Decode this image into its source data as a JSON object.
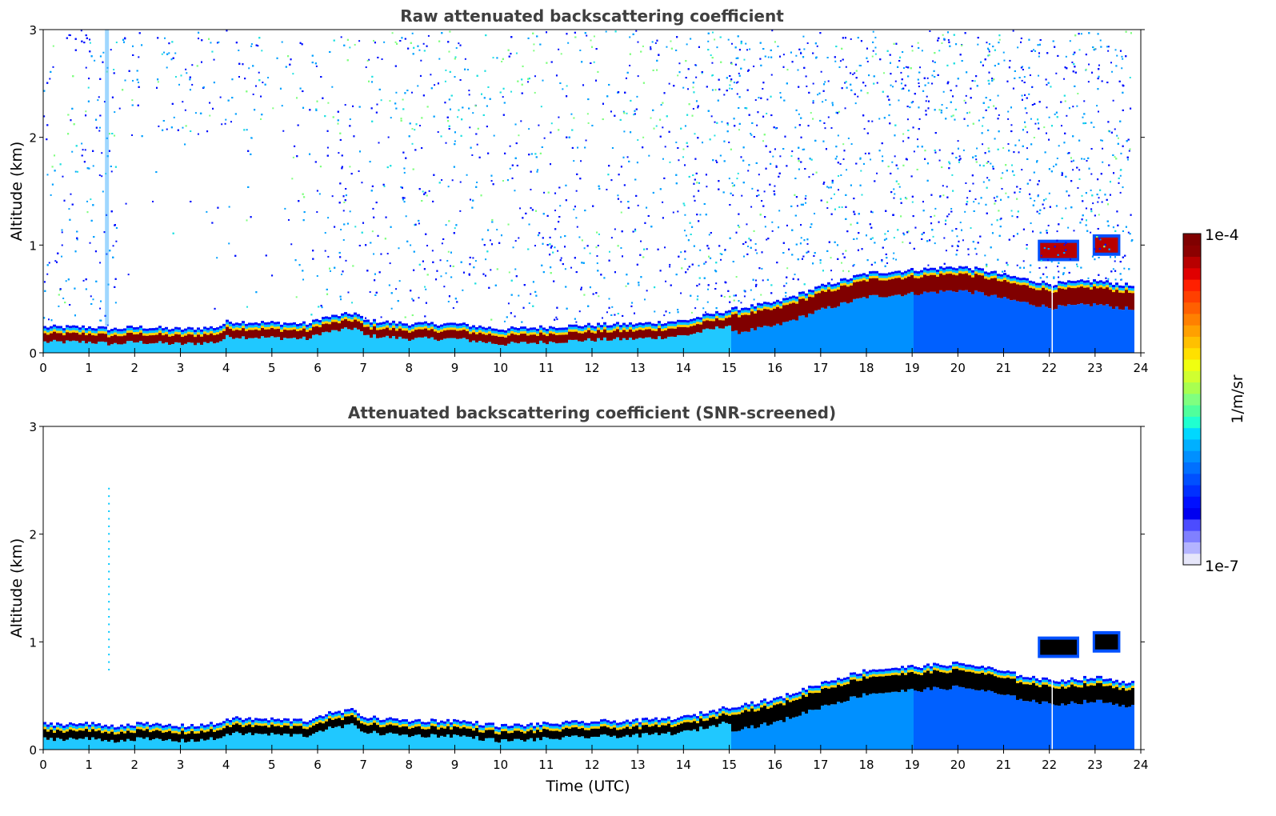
{
  "chart_data": [
    {
      "type": "heatmap",
      "title": "Raw attenuated backscattering coefficient",
      "xlabel": "",
      "ylabel": "Altitude (km)",
      "xlim": [
        0,
        24
      ],
      "ylim": [
        0,
        3
      ],
      "xticks": [
        "0",
        "1",
        "2",
        "3",
        "4",
        "5",
        "6",
        "7",
        "8",
        "9",
        "10",
        "11",
        "12",
        "13",
        "14",
        "15",
        "16",
        "17",
        "18",
        "19",
        "20",
        "21",
        "22",
        "23",
        "24"
      ],
      "yticks": [
        "0",
        "1",
        "2",
        "3"
      ],
      "data_end_time": 23.8,
      "boundary_layer_top_km": [
        [
          0,
          0.22
        ],
        [
          1,
          0.22
        ],
        [
          1.5,
          0.2
        ],
        [
          2,
          0.22
        ],
        [
          3,
          0.2
        ],
        [
          3.8,
          0.22
        ],
        [
          4,
          0.27
        ],
        [
          5,
          0.26
        ],
        [
          5.8,
          0.25
        ],
        [
          6,
          0.3
        ],
        [
          6.8,
          0.35
        ],
        [
          7,
          0.28
        ],
        [
          8,
          0.25
        ],
        [
          9,
          0.25
        ],
        [
          10,
          0.2
        ],
        [
          11,
          0.22
        ],
        [
          12,
          0.24
        ],
        [
          13,
          0.25
        ],
        [
          14,
          0.28
        ],
        [
          15,
          0.38
        ],
        [
          16,
          0.45
        ],
        [
          17,
          0.6
        ],
        [
          18,
          0.72
        ],
        [
          19,
          0.75
        ],
        [
          20,
          0.78
        ],
        [
          20.5,
          0.75
        ],
        [
          21,
          0.7
        ],
        [
          22,
          0.62
        ],
        [
          23,
          0.65
        ],
        [
          23.8,
          0.6
        ]
      ],
      "cloud_features": [
        {
          "time_start": 21.8,
          "time_end": 22.6,
          "altitude_km": 0.95
        },
        {
          "time_start": 23.0,
          "time_end": 23.5,
          "altitude_km": 1.0
        }
      ],
      "colorscale": "jet-log",
      "noise_above_layer": true
    },
    {
      "type": "heatmap",
      "title": "Attenuated backscattering coefficient (SNR-screened)",
      "xlabel": "Time (UTC)",
      "ylabel": "Altitude (km)",
      "xlim": [
        0,
        24
      ],
      "ylim": [
        0,
        3
      ],
      "xticks": [
        "0",
        "1",
        "2",
        "3",
        "4",
        "5",
        "6",
        "7",
        "8",
        "9",
        "10",
        "11",
        "12",
        "13",
        "14",
        "15",
        "16",
        "17",
        "18",
        "19",
        "20",
        "21",
        "22",
        "23",
        "24"
      ],
      "yticks": [
        "0",
        "1",
        "2",
        "3"
      ],
      "data_end_time": 23.8,
      "boundary_layer_top_km": [
        [
          0,
          0.22
        ],
        [
          1,
          0.22
        ],
        [
          1.5,
          0.2
        ],
        [
          2,
          0.22
        ],
        [
          3,
          0.2
        ],
        [
          3.8,
          0.22
        ],
        [
          4,
          0.27
        ],
        [
          5,
          0.26
        ],
        [
          5.8,
          0.25
        ],
        [
          6,
          0.3
        ],
        [
          6.8,
          0.35
        ],
        [
          7,
          0.28
        ],
        [
          8,
          0.25
        ],
        [
          9,
          0.25
        ],
        [
          10,
          0.2
        ],
        [
          11,
          0.22
        ],
        [
          12,
          0.24
        ],
        [
          13,
          0.25
        ],
        [
          14,
          0.28
        ],
        [
          15,
          0.38
        ],
        [
          16,
          0.45
        ],
        [
          17,
          0.6
        ],
        [
          18,
          0.72
        ],
        [
          19,
          0.75
        ],
        [
          20,
          0.78
        ],
        [
          20.5,
          0.75
        ],
        [
          21,
          0.7
        ],
        [
          22,
          0.62
        ],
        [
          23,
          0.65
        ],
        [
          23.8,
          0.6
        ]
      ],
      "cloud_features": [
        {
          "time_start": 21.8,
          "time_end": 22.6,
          "altitude_km": 0.95
        },
        {
          "time_start": 23.0,
          "time_end": 23.5,
          "altitude_km": 1.0
        }
      ],
      "colorscale": "jet-log",
      "noise_above_layer": false
    }
  ],
  "colorbar": {
    "label": "1/m/sr",
    "max_label": "1e-4",
    "min_label": "1e-7",
    "colors": [
      "#e6e6fa",
      "#b4b4ff",
      "#8080ff",
      "#4c4cff",
      "#0000f0",
      "#0010ff",
      "#0030ff",
      "#0050ff",
      "#0070ff",
      "#0090ff",
      "#00b0ff",
      "#00d8ff",
      "#20ffd0",
      "#50ff9c",
      "#80ff80",
      "#a8ff50",
      "#d0ff30",
      "#f0ff10",
      "#ffe000",
      "#ffc000",
      "#ffa000",
      "#ff8000",
      "#ff6000",
      "#ff4000",
      "#ff2000",
      "#e00000",
      "#b80000",
      "#8c0000",
      "#800000"
    ]
  }
}
